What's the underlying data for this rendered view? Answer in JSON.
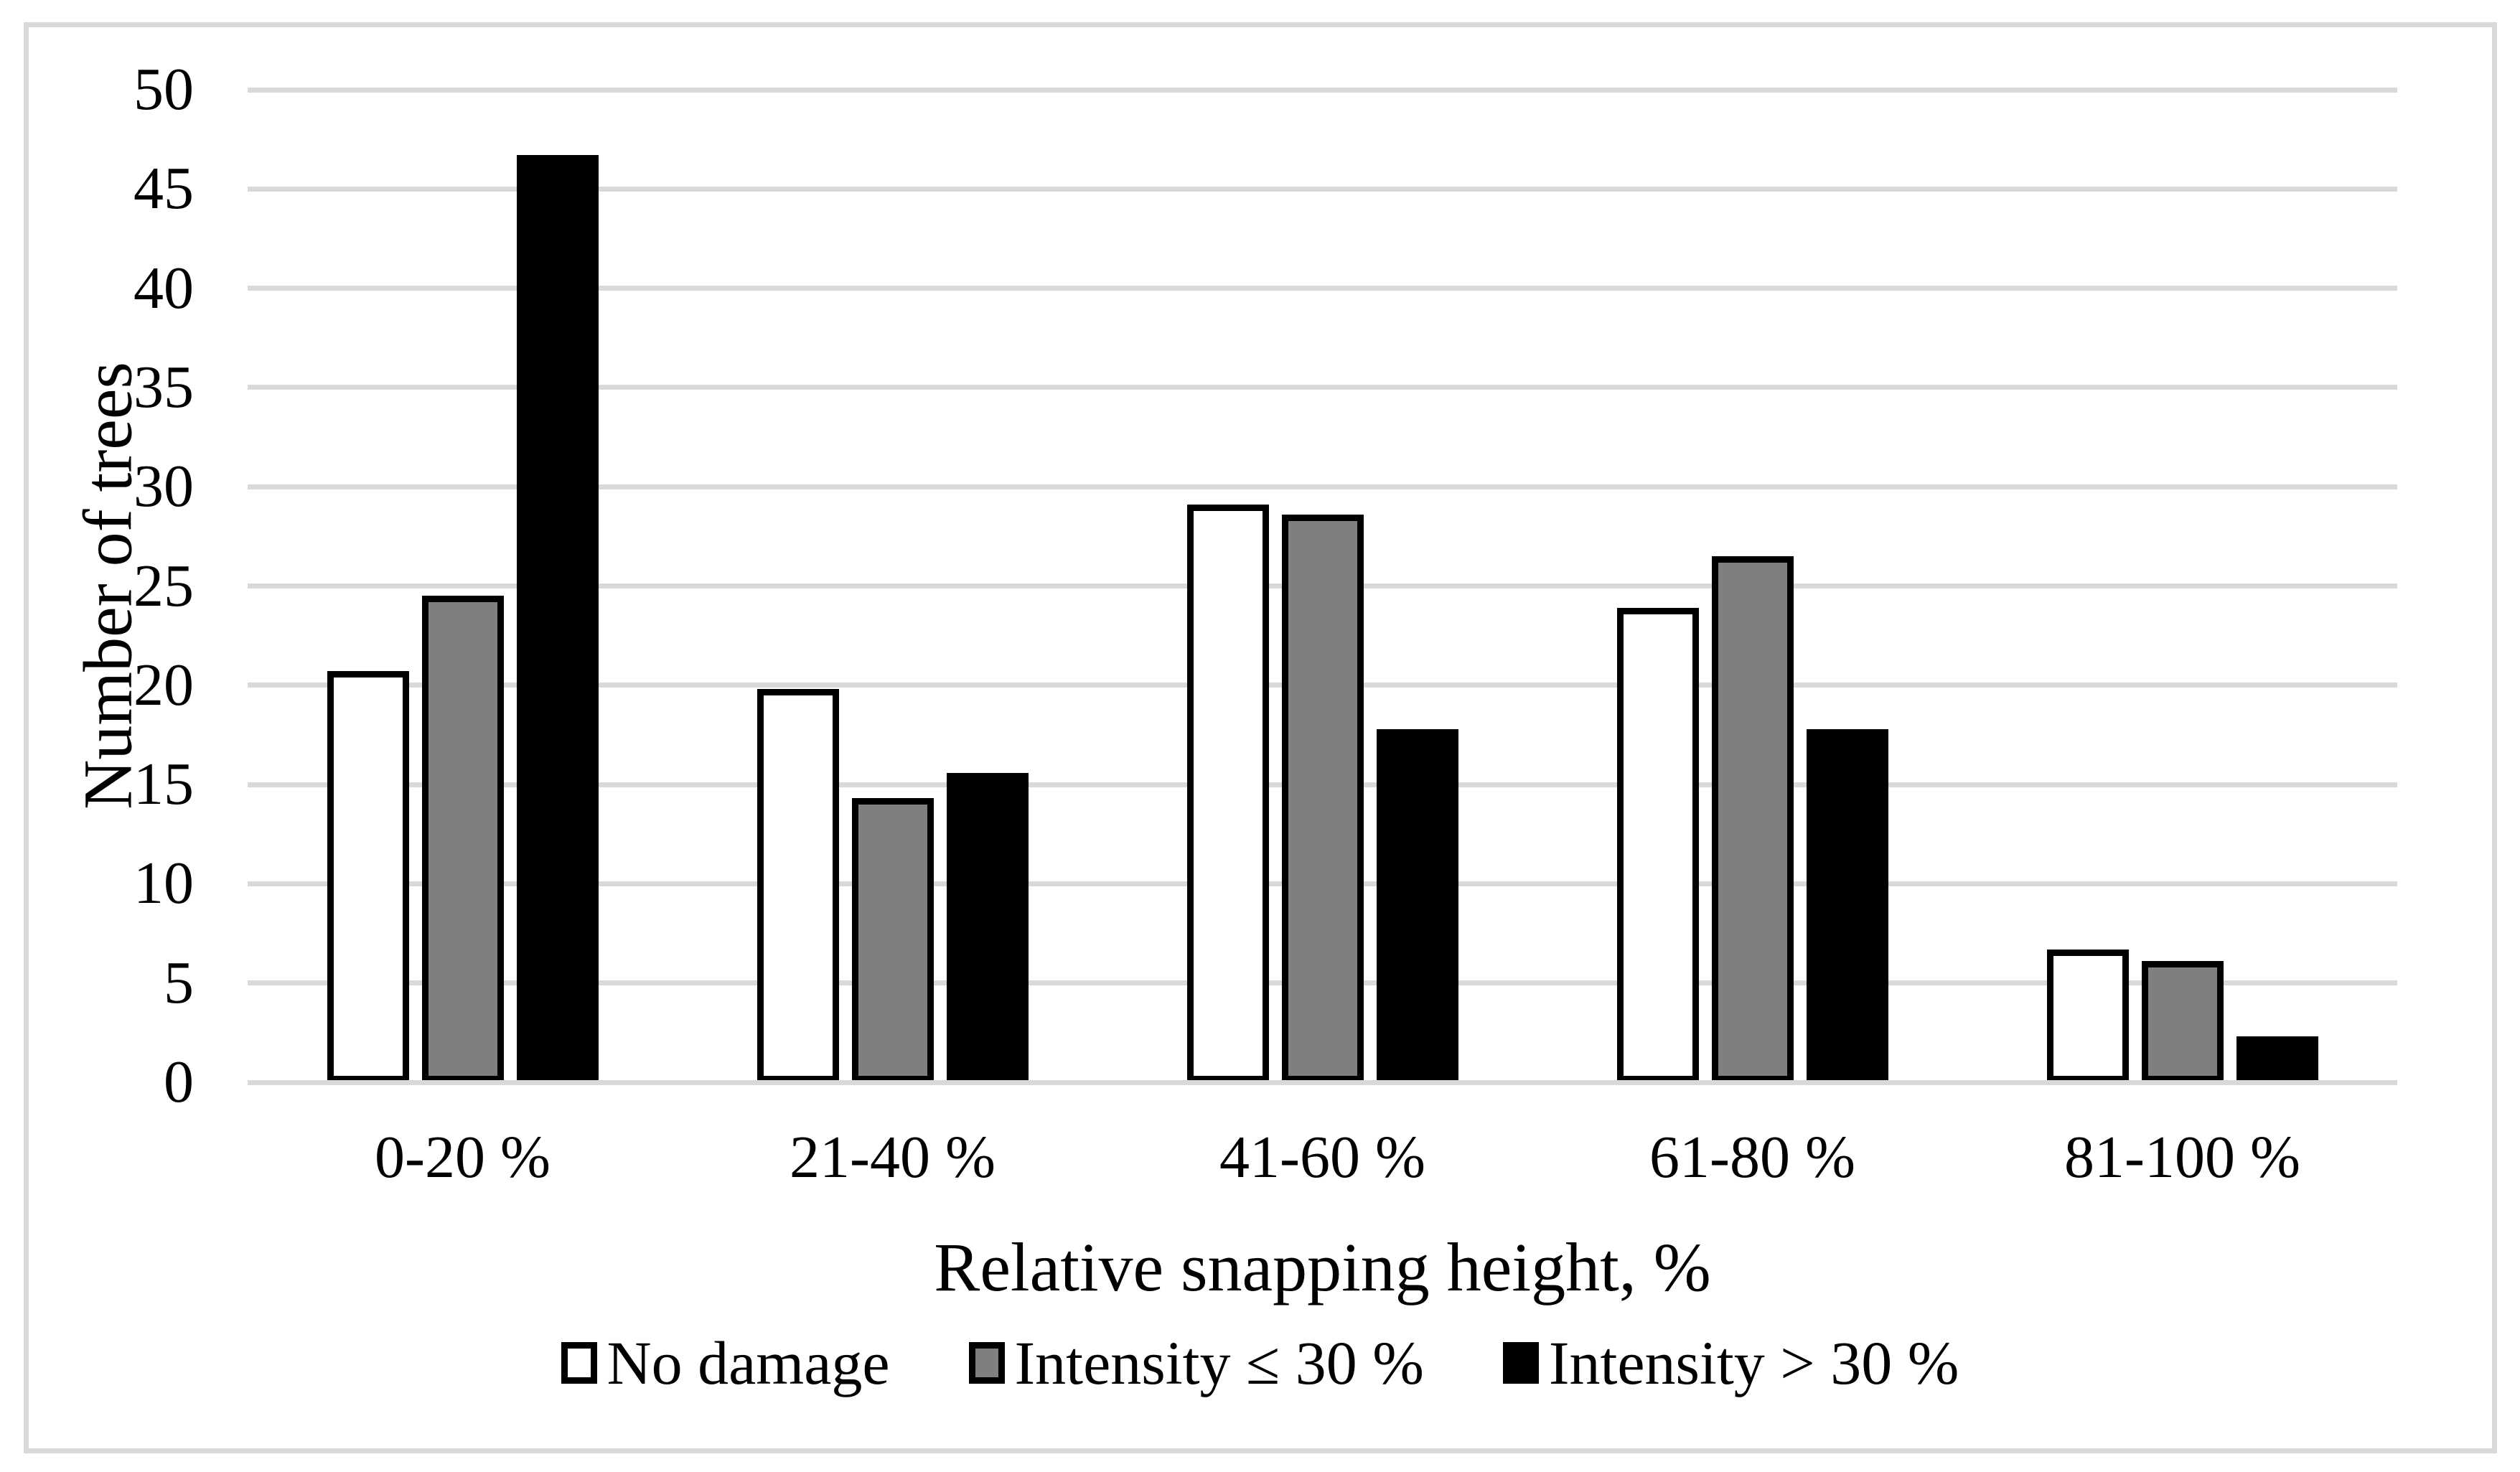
{
  "figure": {
    "background_color": "#ffffff",
    "frame_color": "#d9d9d9"
  },
  "chart_data": {
    "type": "bar",
    "title": "",
    "categories": [
      "0-20 %",
      "21-40 %",
      "41-60 %",
      "61-80 %",
      "81-100 %"
    ],
    "series": [
      {
        "name": "No damage",
        "color": "#ffffff",
        "values": [
          20.7,
          19.8,
          29.1,
          23.9,
          6.7
        ]
      },
      {
        "name": "Intensity ≤ 30 %",
        "color": "#7f7f7f",
        "values": [
          24.5,
          14.3,
          28.6,
          26.5,
          6.1
        ]
      },
      {
        "name": "Intensity > 30 %",
        "color": "#000000",
        "values": [
          46.7,
          15.6,
          17.8,
          17.8,
          2.3
        ]
      }
    ],
    "xlabel": "Relative snapping height, %",
    "ylabel": "Number of trees",
    "ylim": [
      0,
      50
    ],
    "yticks": [
      0,
      5,
      10,
      15,
      20,
      25,
      30,
      35,
      40,
      45,
      50
    ],
    "grid": "horizontal",
    "gridline_color": "#d9d9d9",
    "bar_border_color": "#000000",
    "legend_position": "bottom"
  }
}
